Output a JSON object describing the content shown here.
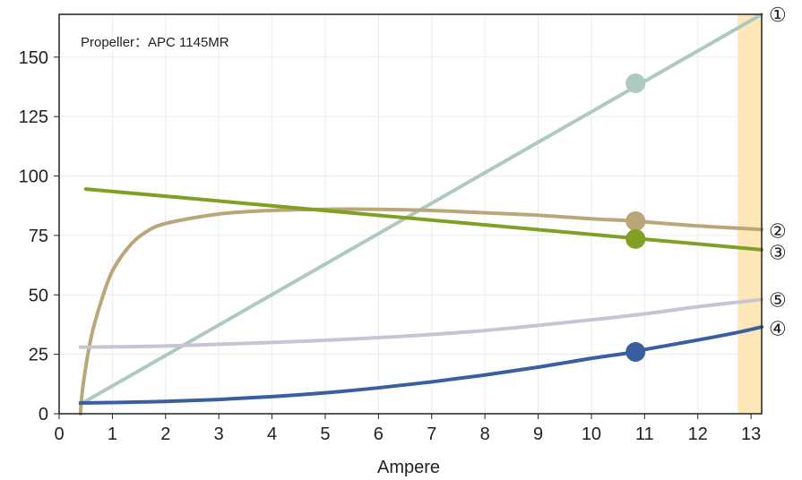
{
  "chart_data": {
    "type": "line",
    "annotation": "Propeller：APC 1145MR",
    "xlabel": "Ampere",
    "ylabel": "",
    "xlim": [
      0,
      13.2
    ],
    "ylim": [
      0,
      168
    ],
    "x_ticks": [
      "0",
      "1",
      "2",
      "3",
      "4",
      "5",
      "6",
      "7",
      "8",
      "9",
      "10",
      "11",
      "12",
      "13"
    ],
    "y_ticks": [
      "0",
      "25",
      "50",
      "75",
      "100",
      "125",
      "150"
    ],
    "grid": true,
    "highlight_band": {
      "x": [
        12.75,
        13.2
      ],
      "color": "#fde6b8"
    },
    "marker_x": 10.83,
    "series": [
      {
        "label": "①",
        "color": "#adc9c0",
        "points": [
          [
            0.4,
            4
          ],
          [
            2,
            32
          ],
          [
            4,
            60.5
          ],
          [
            6,
            89
          ],
          [
            8,
            117
          ],
          [
            10,
            145.5
          ],
          [
            10.83,
            139
          ],
          [
            12,
            156
          ],
          [
            13.2,
            168
          ]
        ],
        "marker_y": 139
      },
      {
        "label": "②",
        "color": "#b9a77a",
        "points": [
          [
            0.4,
            0
          ],
          [
            0.45,
            12
          ],
          [
            0.6,
            32
          ],
          [
            0.8,
            48
          ],
          [
            1.0,
            60
          ],
          [
            1.3,
            70
          ],
          [
            1.6,
            76
          ],
          [
            2.0,
            80
          ],
          [
            3.0,
            84
          ],
          [
            4.0,
            85.5
          ],
          [
            5.0,
            86
          ],
          [
            6.0,
            86
          ],
          [
            7.0,
            85.5
          ],
          [
            8.0,
            84.5
          ],
          [
            9.0,
            83.5
          ],
          [
            10.0,
            82
          ],
          [
            10.83,
            81
          ],
          [
            12.0,
            79
          ],
          [
            13.2,
            77.5
          ]
        ],
        "marker_y": 81
      },
      {
        "label": "③",
        "color": "#7fa024",
        "points": [
          [
            0.5,
            94.5
          ],
          [
            13.2,
            69
          ]
        ],
        "marker_y": 73.5
      },
      {
        "label": "④",
        "color": "#3a5fa0",
        "points": [
          [
            0.4,
            4.5
          ],
          [
            1,
            4.7
          ],
          [
            2,
            5.2
          ],
          [
            3,
            6
          ],
          [
            4,
            7.2
          ],
          [
            5,
            8.8
          ],
          [
            6,
            10.9
          ],
          [
            7,
            13.4
          ],
          [
            8,
            16.3
          ],
          [
            9,
            19.6
          ],
          [
            10,
            23.3
          ],
          [
            10.83,
            26
          ],
          [
            11,
            27
          ],
          [
            12,
            31
          ],
          [
            12.75,
            34.2
          ],
          [
            13.2,
            36.5
          ]
        ],
        "marker_y": 26
      },
      {
        "label": "⑤",
        "color": "#c8c4d4",
        "points": [
          [
            0.4,
            28
          ],
          [
            2,
            28.5
          ],
          [
            4,
            30
          ],
          [
            6,
            32
          ],
          [
            8,
            35
          ],
          [
            10,
            39.5
          ],
          [
            11,
            42
          ],
          [
            12,
            45
          ],
          [
            13.2,
            48
          ]
        ],
        "marker_y": null
      }
    ]
  }
}
